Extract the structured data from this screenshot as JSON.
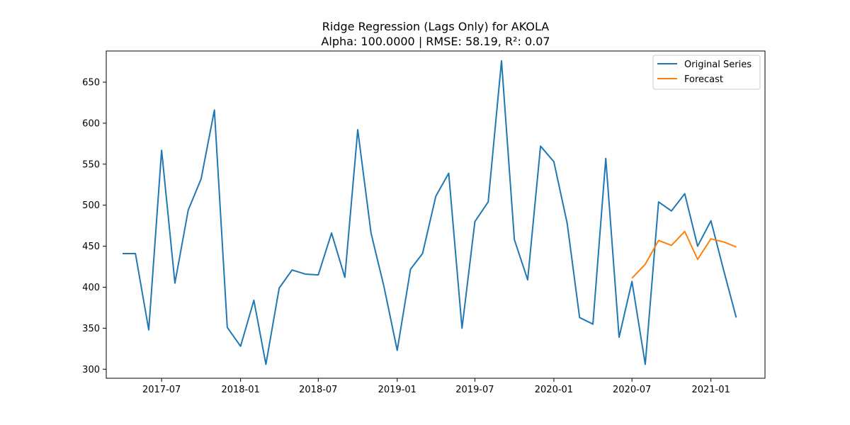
{
  "chart_data": {
    "type": "line",
    "title": "Ridge Regression (Lags Only) for AKOLA",
    "subtitle": "Alpha: 100.0000 | RMSE: 58.19, R²: 0.07",
    "xlabel": "",
    "ylabel": "",
    "xlim": [
      "2017-02-22",
      "2021-05-07"
    ],
    "ylim": [
      289,
      688
    ],
    "x_ticks": [
      "2017-07-01",
      "2018-01-01",
      "2018-07-01",
      "2019-01-01",
      "2019-07-01",
      "2020-01-01",
      "2020-07-01",
      "2021-01-01"
    ],
    "x_tick_labels": [
      "2017-07",
      "2018-01",
      "2018-07",
      "2019-01",
      "2019-07",
      "2020-01",
      "2020-07",
      "2021-01"
    ],
    "y_ticks": [
      300,
      350,
      400,
      450,
      500,
      550,
      600,
      650
    ],
    "y_tick_labels": [
      "300",
      "350",
      "400",
      "450",
      "500",
      "550",
      "600",
      "650"
    ],
    "grid": false,
    "legend_position": "top-right",
    "series": [
      {
        "name": "Original Series",
        "color": "#1f77b4",
        "points": [
          [
            "2017-04-01",
            441
          ],
          [
            "2017-05-01",
            441
          ],
          [
            "2017-06-01",
            348
          ],
          [
            "2017-07-01",
            567
          ],
          [
            "2017-08-01",
            405
          ],
          [
            "2017-09-01",
            494
          ],
          [
            "2017-10-01",
            532
          ],
          [
            "2017-11-01",
            616
          ],
          [
            "2017-12-01",
            351
          ],
          [
            "2018-01-01",
            328
          ],
          [
            "2018-02-01",
            384
          ],
          [
            "2018-03-01",
            306
          ],
          [
            "2018-04-01",
            399
          ],
          [
            "2018-05-01",
            421
          ],
          [
            "2018-06-01",
            416
          ],
          [
            "2018-07-01",
            415
          ],
          [
            "2018-08-01",
            466
          ],
          [
            "2018-09-01",
            412
          ],
          [
            "2018-10-01",
            592
          ],
          [
            "2018-11-01",
            466
          ],
          [
            "2018-12-01",
            401
          ],
          [
            "2019-01-01",
            323
          ],
          [
            "2019-02-01",
            422
          ],
          [
            "2019-03-01",
            441
          ],
          [
            "2019-04-01",
            511
          ],
          [
            "2019-05-01",
            539
          ],
          [
            "2019-06-01",
            350
          ],
          [
            "2019-07-01",
            480
          ],
          [
            "2019-08-01",
            504
          ],
          [
            "2019-09-01",
            676
          ],
          [
            "2019-10-01",
            458
          ],
          [
            "2019-11-01",
            409
          ],
          [
            "2019-12-01",
            572
          ],
          [
            "2020-01-01",
            553
          ],
          [
            "2020-02-01",
            478
          ],
          [
            "2020-03-01",
            363
          ],
          [
            "2020-04-01",
            355
          ],
          [
            "2020-05-01",
            557
          ],
          [
            "2020-06-01",
            339
          ],
          [
            "2020-07-01",
            407
          ],
          [
            "2020-08-01",
            306
          ],
          [
            "2020-09-01",
            504
          ],
          [
            "2020-10-01",
            493
          ],
          [
            "2020-11-01",
            514
          ],
          [
            "2020-12-01",
            450
          ],
          [
            "2021-01-01",
            481
          ],
          [
            "2021-02-01",
            418
          ],
          [
            "2021-03-01",
            363
          ]
        ]
      },
      {
        "name": "Forecast",
        "color": "#ff7f0e",
        "points": [
          [
            "2020-07-01",
            411
          ],
          [
            "2020-08-01",
            428
          ],
          [
            "2020-09-01",
            457
          ],
          [
            "2020-10-01",
            451
          ],
          [
            "2020-11-01",
            468
          ],
          [
            "2020-12-01",
            434
          ],
          [
            "2021-01-01",
            459
          ],
          [
            "2021-02-01",
            455
          ],
          [
            "2021-03-01",
            449
          ]
        ]
      }
    ]
  }
}
